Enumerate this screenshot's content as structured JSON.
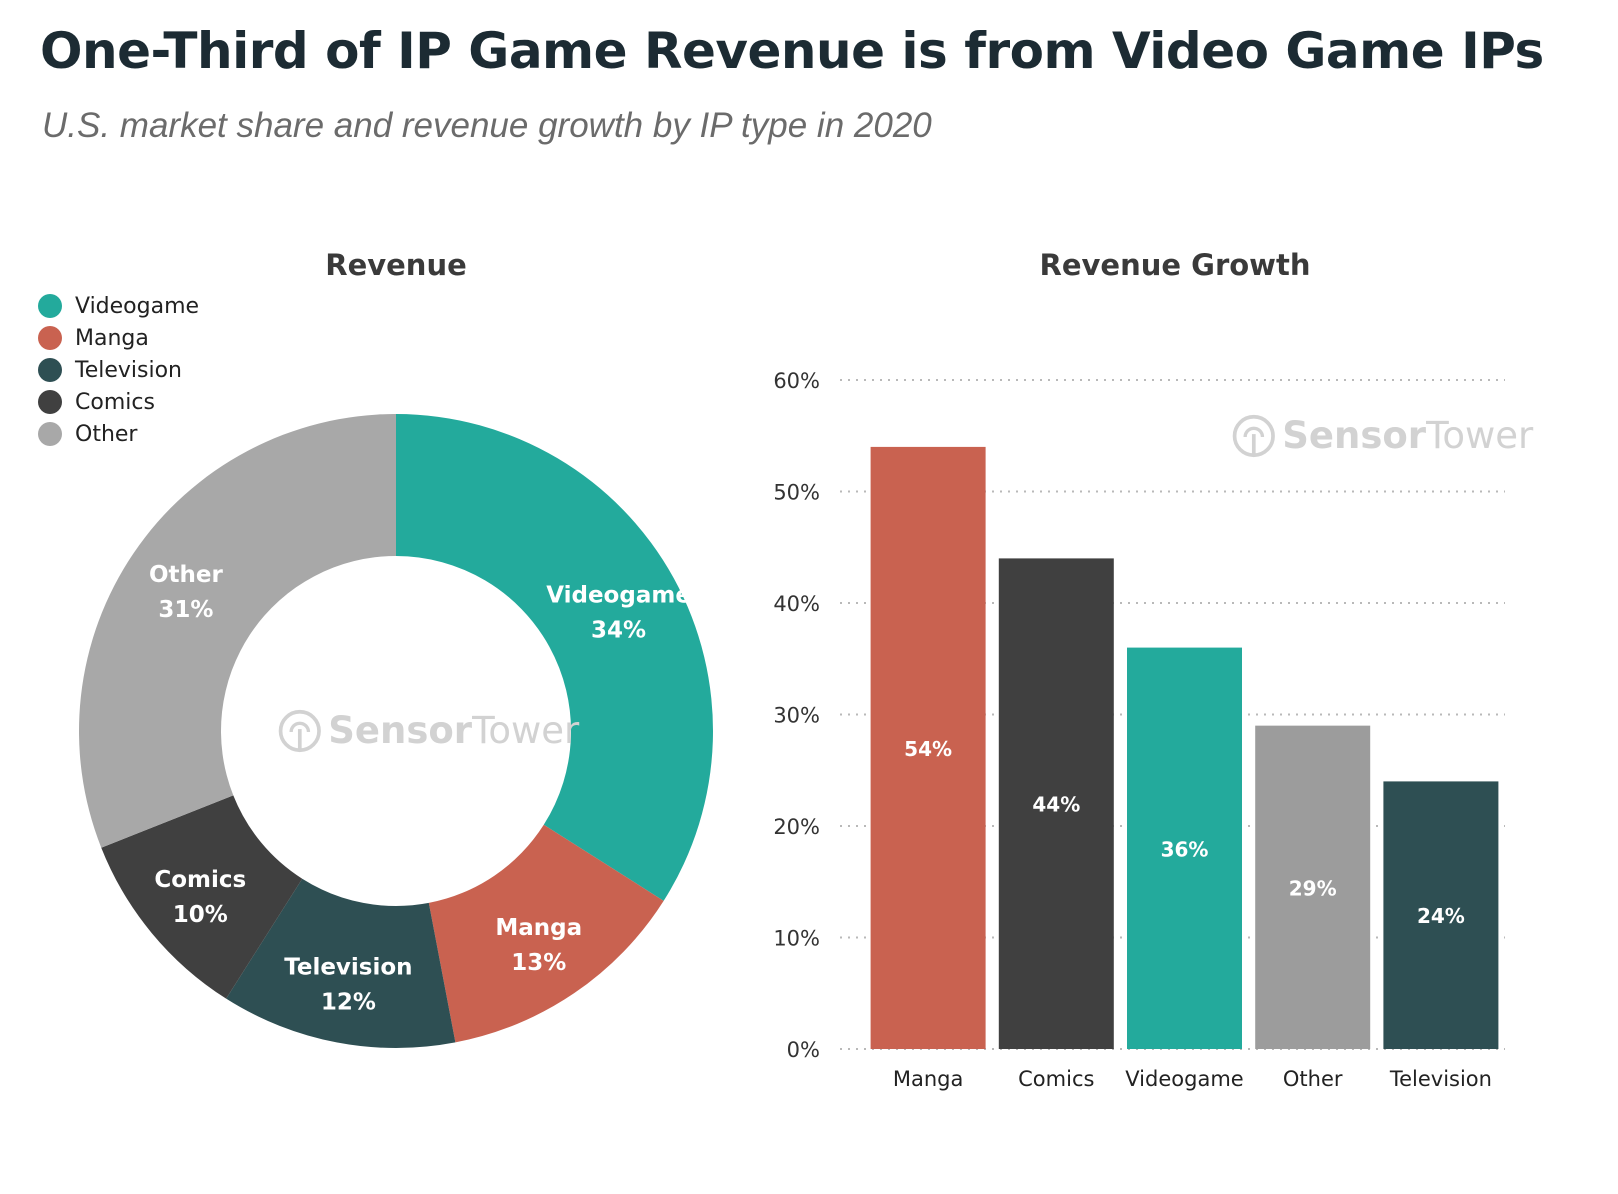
{
  "title": "One-Third of IP Game Revenue is from Video Game IPs",
  "subtitle": "U.S. market share and revenue growth by IP type in 2020",
  "watermark": {
    "brand_a": "Sensor",
    "brand_b": "Tower"
  },
  "colors": {
    "videogame": "#23aa9c",
    "manga": "#c96250",
    "television": "#2e4f53",
    "comics": "#404040",
    "other": "#a8a8a8",
    "other_bar": "#9c9c9c"
  },
  "chart_data": [
    {
      "type": "pie",
      "title": "Revenue",
      "donut": true,
      "legend_position": "top-left",
      "slices": [
        {
          "label": "Videogame",
          "value": 34,
          "display": "34%",
          "color_key": "videogame"
        },
        {
          "label": "Manga",
          "value": 13,
          "display": "13%",
          "color_key": "manga"
        },
        {
          "label": "Television",
          "value": 12,
          "display": "12%",
          "color_key": "television"
        },
        {
          "label": "Comics",
          "value": 10,
          "display": "10%",
          "color_key": "comics"
        },
        {
          "label": "Other",
          "value": 31,
          "display": "31%",
          "color_key": "other"
        }
      ]
    },
    {
      "type": "bar",
      "title": "Revenue Growth",
      "categories": [
        "Manga",
        "Comics",
        "Videogame",
        "Other",
        "Television"
      ],
      "values": [
        54,
        44,
        36,
        29,
        24
      ],
      "value_labels": [
        "54%",
        "44%",
        "36%",
        "29%",
        "24%"
      ],
      "color_keys": [
        "manga",
        "comics",
        "videogame",
        "other_bar",
        "television"
      ],
      "ylim": [
        0,
        60
      ],
      "yticks": [
        0,
        10,
        20,
        30,
        40,
        50,
        60
      ],
      "ytick_labels": [
        "0%",
        "10%",
        "20%",
        "30%",
        "40%",
        "50%",
        "60%"
      ],
      "grid": true
    }
  ]
}
